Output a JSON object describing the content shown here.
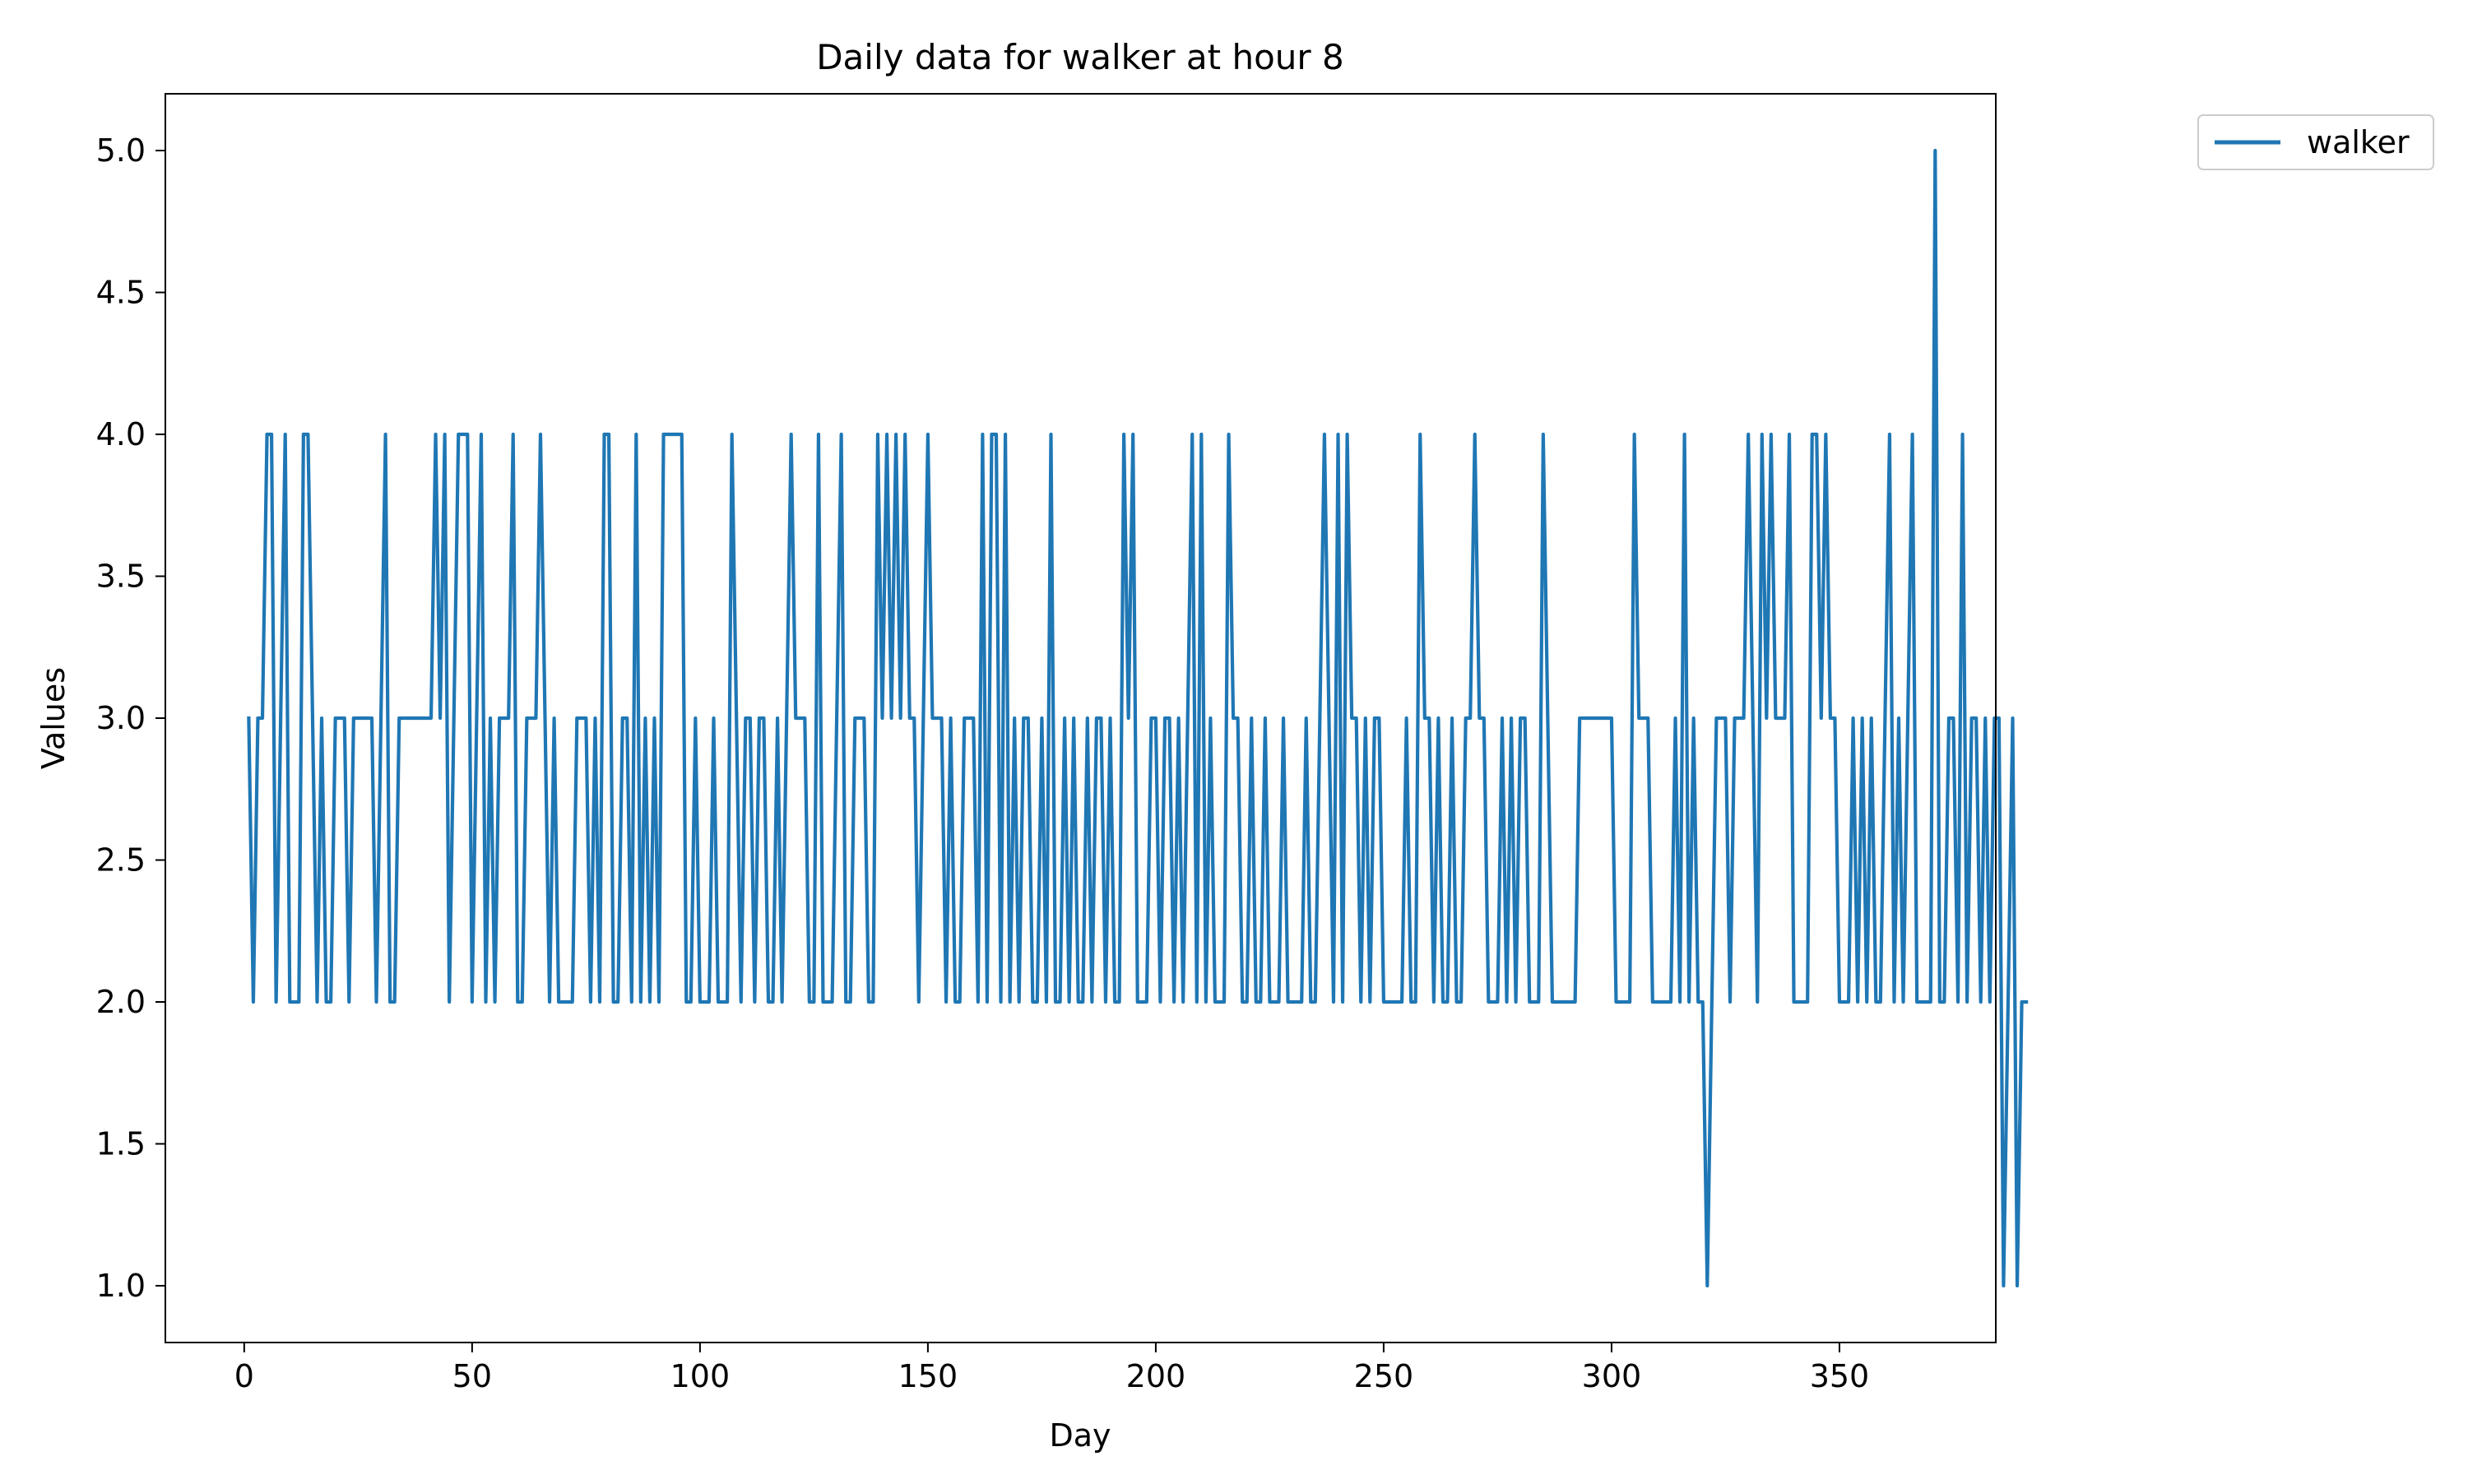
{
  "chart_data": {
    "type": "line",
    "title": "Daily data for walker at hour 8",
    "xlabel": "Day",
    "ylabel": "Values",
    "xlim": [
      -17.3,
      384.3
    ],
    "ylim": [
      0.8,
      5.2
    ],
    "xticks": [
      0,
      50,
      100,
      150,
      200,
      250,
      300,
      350
    ],
    "yticks": [
      1.0,
      1.5,
      2.0,
      2.5,
      3.0,
      3.5,
      4.0,
      4.5,
      5.0
    ],
    "ytick_labels": [
      "1.0",
      "1.5",
      "2.0",
      "2.5",
      "3.0",
      "3.5",
      "4.0",
      "4.5",
      "5.0"
    ],
    "grid": false,
    "legend": {
      "position": "upper-right, outside plot area"
    },
    "series": [
      {
        "name": "walker",
        "color": "#1f77b4",
        "x_start": 1,
        "values": [
          3,
          2,
          3,
          3,
          4,
          4,
          2,
          3,
          4,
          2,
          2,
          2,
          4,
          4,
          3,
          2,
          3,
          2,
          2,
          3,
          3,
          3,
          2,
          3,
          3,
          3,
          3,
          3,
          2,
          3,
          4,
          2,
          2,
          3,
          3,
          3,
          3,
          3,
          3,
          3,
          3,
          4,
          3,
          4,
          2,
          3,
          4,
          4,
          4,
          2,
          3,
          4,
          2,
          3,
          2,
          3,
          3,
          3,
          4,
          2,
          2,
          3,
          3,
          3,
          4,
          3,
          2,
          3,
          2,
          2,
          2,
          2,
          3,
          3,
          3,
          2,
          3,
          2,
          4,
          4,
          2,
          2,
          3,
          3,
          2,
          4,
          2,
          3,
          2,
          3,
          2,
          4,
          4,
          4,
          4,
          4,
          2,
          2,
          3,
          2,
          2,
          2,
          3,
          2,
          2,
          2,
          4,
          3,
          2,
          3,
          3,
          2,
          3,
          3,
          2,
          2,
          3,
          2,
          3,
          4,
          3,
          3,
          3,
          2,
          2,
          4,
          2,
          2,
          2,
          3,
          4,
          2,
          2,
          3,
          3,
          3,
          2,
          2,
          4,
          3,
          4,
          3,
          4,
          3,
          4,
          3,
          3,
          2,
          3,
          4,
          3,
          3,
          3,
          2,
          3,
          2,
          2,
          3,
          3,
          3,
          2,
          4,
          2,
          4,
          4,
          2,
          4,
          2,
          3,
          2,
          3,
          3,
          2,
          2,
          3,
          2,
          4,
          2,
          2,
          3,
          2,
          3,
          2,
          2,
          3,
          2,
          3,
          3,
          2,
          3,
          2,
          2,
          4,
          3,
          4,
          2,
          2,
          2,
          3,
          3,
          2,
          3,
          3,
          2,
          3,
          2,
          3,
          4,
          2,
          4,
          2,
          3,
          2,
          2,
          2,
          4,
          3,
          3,
          2,
          2,
          3,
          2,
          2,
          3,
          2,
          2,
          2,
          3,
          2,
          2,
          2,
          2,
          3,
          2,
          2,
          3,
          4,
          3,
          2,
          4,
          2,
          4,
          3,
          3,
          2,
          3,
          2,
          3,
          3,
          2,
          2,
          2,
          2,
          2,
          3,
          2,
          2,
          4,
          3,
          3,
          2,
          3,
          2,
          2,
          3,
          2,
          2,
          3,
          3,
          4,
          3,
          3,
          2,
          2,
          2,
          3,
          2,
          3,
          2,
          3,
          3,
          2,
          2,
          2,
          4,
          3,
          2,
          2,
          2,
          2,
          2,
          2,
          3,
          3,
          3,
          3,
          3,
          3,
          3,
          3,
          2,
          2,
          2,
          2,
          4,
          3,
          3,
          3,
          2,
          2,
          2,
          2,
          2,
          3,
          2,
          4,
          2,
          3,
          2,
          2,
          1,
          2,
          3,
          3,
          3,
          2,
          3,
          3,
          3,
          4,
          3,
          2,
          4,
          3,
          4,
          3,
          3,
          3,
          4,
          2,
          2,
          2,
          2,
          4,
          4,
          3,
          4,
          3,
          3,
          2,
          2,
          2,
          3,
          2,
          3,
          2,
          3,
          2,
          2,
          3,
          4,
          2,
          3,
          2,
          3,
          4,
          2,
          2,
          2,
          2,
          5,
          2,
          2,
          3,
          3,
          2,
          4,
          2,
          3,
          3,
          2,
          3,
          2,
          3,
          3,
          1,
          2,
          3,
          1,
          2,
          2
        ]
      }
    ]
  }
}
